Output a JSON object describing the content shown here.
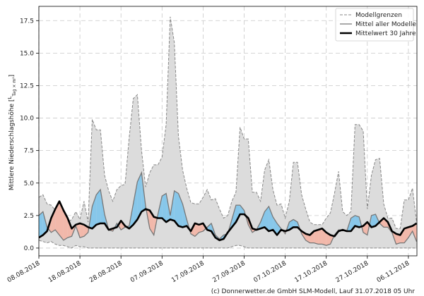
{
  "chart_data": {
    "type": "line",
    "ylabel": "Mittlere Niederschlagshöhe [L/(Tag × m²)]",
    "ylim": [
      -0.6,
      18.6
    ],
    "yticks": [
      0.0,
      2.5,
      5.0,
      7.5,
      10.0,
      12.5,
      15.0,
      17.5
    ],
    "ytick_labels": [
      "0.0",
      "2.5",
      "5.0",
      "7.5",
      "10.0",
      "12.5",
      "15.0",
      "17.5"
    ],
    "x_start": "2018-08-08",
    "xtick_labels": [
      "08.08.2018",
      "18.08.2018",
      "28.08.2018",
      "07.09.2018",
      "17.09.2018",
      "27.09.2018",
      "07.10.2018",
      "17.10.2018",
      "27.10.2018",
      "06.11.2018"
    ],
    "grid": true,
    "legend_position": "top-right",
    "colors": {
      "model_bounds_fill": "#dcdcdc",
      "model_bounds_line": "#888888",
      "model_mean": "#777777",
      "climate_mean": "#000000",
      "above_climate": "#87c7ea",
      "below_climate": "#f2b8aa"
    },
    "series": [
      {
        "name": "Modellgrenzen",
        "style": "band",
        "upper": [
          3.9,
          4.1,
          3.4,
          3.3,
          2.9,
          3.2,
          2.5,
          2.0,
          2.2,
          2.8,
          2.2,
          3.6,
          2.0,
          9.9,
          9.1,
          9.1,
          5.6,
          4.4,
          3.6,
          4.5,
          4.8,
          4.9,
          8.5,
          11.5,
          11.8,
          7.5,
          4.7,
          5.8,
          6.4,
          6.4,
          7.0,
          9.5,
          17.8,
          15.8,
          8.6,
          6.0,
          4.6,
          3.5,
          3.4,
          3.4,
          3.9,
          4.5,
          3.7,
          3.8,
          3.0,
          2.3,
          2.5,
          3.6,
          4.3,
          9.3,
          8.4,
          8.4,
          4.3,
          4.3,
          3.6,
          6.0,
          6.8,
          4.5,
          3.3,
          3.4,
          2.3,
          3.6,
          6.6,
          6.6,
          4.1,
          3.0,
          2.0,
          1.8,
          1.8,
          1.8,
          2.3,
          2.7,
          4.2,
          5.9,
          2.8,
          2.5,
          2.8,
          9.5,
          9.5,
          9.0,
          3.0,
          5.6,
          6.8,
          6.9,
          3.4,
          2.3,
          2.3,
          1.5,
          1.5,
          3.7,
          3.7,
          4.6,
          2.0
        ],
        "lower": [
          0.6,
          0.5,
          0.4,
          0.5,
          0.3,
          0.2,
          0.2,
          0.1,
          0.0,
          0.2,
          0.1,
          0.1,
          0.0,
          0.0,
          0.0,
          0.0,
          0.0,
          0.0,
          0.0,
          0.0,
          0.0,
          0.0,
          0.0,
          0.0,
          0.0,
          0.0,
          0.0,
          0.0,
          0.0,
          0.0,
          0.0,
          0.0,
          0.0,
          0.0,
          0.0,
          0.0,
          0.0,
          0.0,
          0.0,
          0.0,
          0.0,
          0.0,
          0.0,
          0.0,
          0.0,
          0.0,
          0.0,
          0.1,
          0.2,
          0.2,
          0.1,
          0.0,
          0.0,
          0.0,
          0.0,
          0.0,
          0.0,
          0.0,
          0.0,
          0.0,
          0.0,
          0.0,
          0.0,
          0.0,
          0.0,
          0.0,
          0.0,
          0.0,
          0.0,
          0.0,
          0.0,
          0.0,
          0.0,
          0.0,
          0.0,
          0.0,
          0.0,
          0.0,
          0.0,
          0.0,
          0.0,
          0.0,
          0.0,
          0.0,
          0.0,
          0.0,
          0.0,
          0.0,
          0.0,
          0.0,
          0.0,
          0.0,
          0.0
        ]
      },
      {
        "name": "Mittel aller Modelle",
        "style": "line",
        "values": [
          2.5,
          2.8,
          1.6,
          1.2,
          1.4,
          1.0,
          0.6,
          0.8,
          0.9,
          1.7,
          0.8,
          0.9,
          1.2,
          3.2,
          4.1,
          4.5,
          2.6,
          1.4,
          1.3,
          1.9,
          1.4,
          1.6,
          1.7,
          3.4,
          5.1,
          5.8,
          3.2,
          1.5,
          1.0,
          2.6,
          4.0,
          4.2,
          2.5,
          4.4,
          4.2,
          3.4,
          2.2,
          1.1,
          0.9,
          1.2,
          1.3,
          1.6,
          1.9,
          1.0,
          0.7,
          1.0,
          1.1,
          2.2,
          3.3,
          3.3,
          2.9,
          1.8,
          1.2,
          1.4,
          2.0,
          2.8,
          3.2,
          2.4,
          1.9,
          1.5,
          1.1,
          2.0,
          2.2,
          2.0,
          1.1,
          0.6,
          0.4,
          0.4,
          0.3,
          0.3,
          0.2,
          0.3,
          1.0,
          1.4,
          1.4,
          1.3,
          2.3,
          2.5,
          2.4,
          1.2,
          1.0,
          2.5,
          2.6,
          1.9,
          1.6,
          1.6,
          1.2,
          0.3,
          0.4,
          0.4,
          0.8,
          1.3,
          0.5
        ]
      },
      {
        "name": "Mittelwert 30 Jahre",
        "style": "line",
        "values": [
          0.8,
          1.0,
          1.3,
          2.3,
          3.0,
          3.6,
          2.9,
          2.3,
          1.5,
          1.8,
          1.9,
          1.8,
          1.6,
          1.5,
          1.8,
          1.9,
          1.9,
          1.4,
          1.5,
          1.6,
          2.1,
          1.7,
          1.5,
          1.8,
          2.2,
          2.8,
          3.0,
          2.9,
          2.4,
          2.3,
          2.3,
          2.0,
          2.2,
          2.1,
          1.7,
          1.6,
          1.7,
          1.3,
          1.9,
          1.8,
          1.9,
          1.4,
          1.3,
          0.8,
          0.6,
          0.7,
          1.2,
          1.6,
          2.0,
          2.6,
          2.6,
          2.3,
          1.5,
          1.4,
          1.5,
          1.6,
          1.3,
          1.4,
          1.0,
          1.4,
          1.3,
          1.4,
          1.6,
          1.6,
          1.3,
          1.1,
          1.0,
          1.3,
          1.4,
          1.5,
          1.2,
          1.0,
          0.9,
          1.3,
          1.4,
          1.3,
          1.3,
          1.7,
          1.6,
          1.7,
          2.0,
          1.6,
          1.7,
          2.0,
          2.3,
          2.0,
          1.3,
          1.1,
          1.0,
          1.5,
          1.6,
          1.7,
          1.9
        ]
      }
    ]
  },
  "footer": {
    "credit": "(c) Donnerwetter.de GmbH SLM-Modell, Lauf 31.07.2018 05 Uhr"
  }
}
